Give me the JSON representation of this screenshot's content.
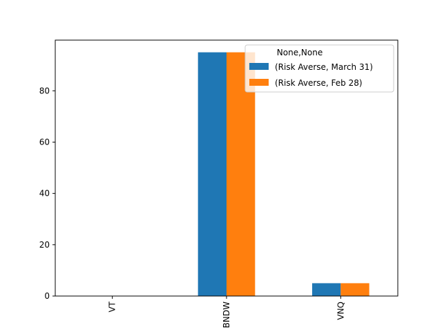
{
  "chart_data": {
    "type": "bar",
    "categories": [
      "VT",
      "BNDW",
      "VNQ"
    ],
    "series": [
      {
        "name": "(Risk Averse, March 31)",
        "values": [
          0,
          95,
          5
        ],
        "color": "#1f77b4"
      },
      {
        "name": "(Risk Averse, Feb 28)",
        "values": [
          0,
          95,
          5
        ],
        "color": "#ff7f0e"
      }
    ],
    "ylim": [
      0,
      99.75
    ],
    "yticks": [
      0,
      20,
      40,
      60,
      80
    ],
    "title": "",
    "xlabel": "",
    "ylabel": "",
    "legend": {
      "title": "None,None",
      "placement": "top-right"
    },
    "grid": false,
    "xtick_rotation": 90
  }
}
